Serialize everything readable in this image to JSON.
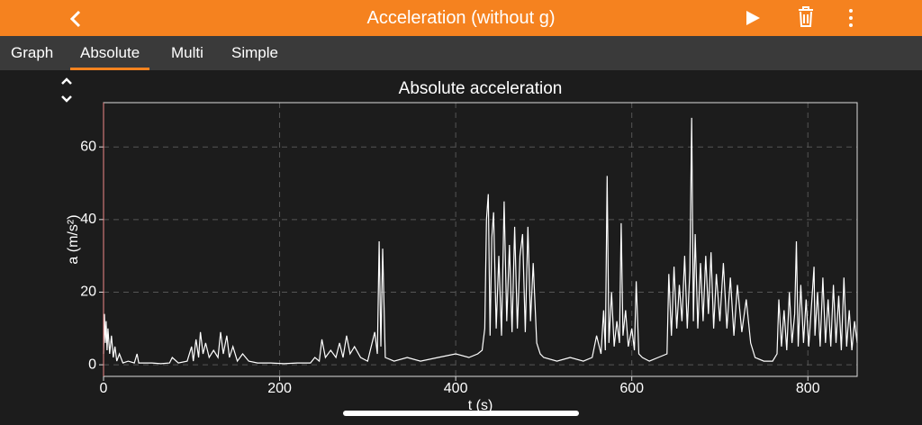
{
  "app_bar": {
    "title": "Acceleration (without g)"
  },
  "tabs": [
    "Graph",
    "Absolute",
    "Multi",
    "Simple"
  ],
  "selected_tab": 1,
  "chart_data": {
    "type": "line",
    "title": "Absolute acceleration",
    "x_label": "t (s)",
    "y_label": "a (m/s²)",
    "xlim": [
      0,
      856
    ],
    "ylim": [
      -3.2,
      72.2
    ],
    "xticks": [
      0,
      200,
      400,
      600,
      800
    ],
    "yticks": [
      0,
      20,
      40,
      60
    ],
    "grid": true,
    "color": "#ffffff",
    "x": [
      0,
      1,
      2,
      3,
      4,
      5,
      7,
      9,
      11,
      13,
      15,
      18,
      22,
      28,
      35,
      38,
      40,
      45,
      55,
      65,
      75,
      78,
      85,
      95,
      100,
      102,
      105,
      108,
      110,
      113,
      116,
      120,
      125,
      130,
      133,
      136,
      140,
      143,
      147,
      152,
      158,
      165,
      175,
      190,
      205,
      220,
      235,
      240,
      245,
      248,
      252,
      258,
      264,
      268,
      272,
      276,
      280,
      285,
      292,
      300,
      308,
      311,
      313,
      315,
      317,
      320,
      330,
      345,
      360,
      380,
      400,
      415,
      425,
      430,
      433,
      435,
      437,
      439,
      441,
      443,
      446,
      449,
      452,
      455,
      458,
      461,
      464,
      467,
      470,
      473,
      476,
      479,
      482,
      485,
      488,
      492,
      496,
      500,
      515,
      530,
      545,
      555,
      560,
      565,
      568,
      570,
      572,
      574,
      577,
      580,
      583,
      586,
      588,
      590,
      593,
      596,
      600,
      603,
      605,
      608,
      612,
      620,
      630,
      640,
      642,
      645,
      648,
      651,
      654,
      657,
      660,
      663,
      666,
      668,
      670,
      672,
      675,
      678,
      681,
      684,
      687,
      690,
      693,
      696,
      700,
      704,
      708,
      712,
      716,
      720,
      725,
      730,
      735,
      740,
      750,
      760,
      765,
      767,
      770,
      773,
      776,
      779,
      782,
      785,
      787,
      789,
      792,
      795,
      798,
      801,
      804,
      807,
      808,
      811,
      814,
      817,
      820,
      823,
      826,
      829,
      832,
      835,
      838,
      841,
      844,
      847,
      850,
      853,
      856
    ],
    "values": [
      3,
      14,
      6,
      12,
      4,
      10,
      3,
      8,
      2,
      5,
      1,
      3,
      0.5,
      1,
      0.5,
      3,
      0.5,
      0.5,
      0.5,
      0.3,
      0.5,
      2,
      0.5,
      1,
      5,
      1,
      7,
      2,
      9,
      3,
      6,
      2,
      4,
      2,
      9,
      3,
      8,
      2,
      5,
      1,
      3,
      1,
      0.5,
      0.5,
      0.3,
      0.5,
      0.5,
      2,
      1,
      7,
      2,
      4,
      2,
      6,
      2,
      8,
      3,
      5,
      2,
      1,
      9,
      3,
      34,
      5,
      32,
      2,
      1,
      2,
      1,
      2,
      3,
      2,
      3,
      4,
      10,
      40,
      47,
      8,
      35,
      42,
      10,
      30,
      8,
      45,
      12,
      33,
      9,
      38,
      10,
      30,
      36,
      9,
      38,
      12,
      28,
      6,
      3,
      2,
      1,
      2,
      1,
      2,
      8,
      3,
      15,
      4,
      52,
      6,
      20,
      5,
      12,
      6,
      39,
      8,
      15,
      5,
      10,
      4,
      23,
      3,
      2,
      1,
      2,
      3,
      25,
      8,
      27,
      10,
      22,
      12,
      30,
      10,
      26,
      68,
      12,
      36,
      10,
      28,
      12,
      30,
      14,
      31,
      10,
      25,
      12,
      28,
      10,
      24,
      8,
      22,
      9,
      18,
      6,
      2,
      1,
      1,
      3,
      18,
      5,
      15,
      4,
      20,
      6,
      14,
      34,
      5,
      22,
      6,
      18,
      5,
      16,
      27,
      8,
      20,
      5,
      24,
      6,
      18,
      5,
      22,
      6,
      19,
      4,
      24,
      5,
      15,
      4,
      12,
      6
    ]
  }
}
